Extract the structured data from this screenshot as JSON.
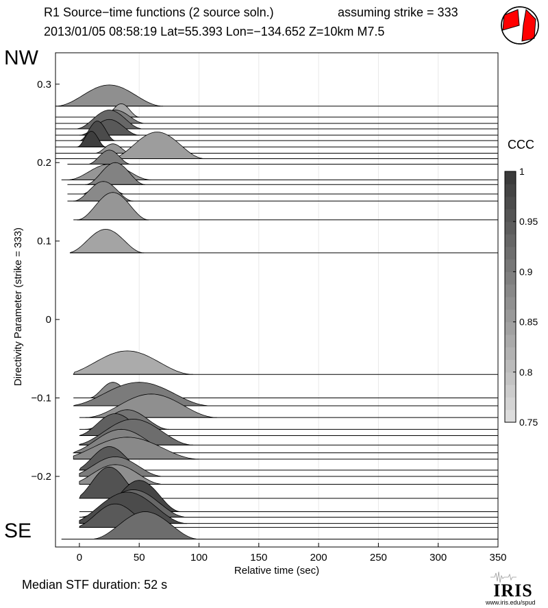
{
  "header": {
    "title_left": "R1 Source−time functions (2 source soln.)",
    "title_right": "assuming strike = 333",
    "event_line": "2013/01/05 08:58:19  Lat=55.393 Lon=−134.652  Z=10km  M7.5"
  },
  "labels": {
    "nw": "NW",
    "se": "SE",
    "median": "Median STF duration: 52 s",
    "url": "www.iris.edu/spud",
    "logo_text": "IRIS"
  },
  "colors": {
    "beachball_fill": "#ff0000",
    "outline": "#000000",
    "grid": "#e8e8e8"
  },
  "chart_data": {
    "type": "area",
    "xlabel": "Relative time (sec)",
    "ylabel": "Directivity Parameter (strike = 333)",
    "xlim": [
      -20,
      350
    ],
    "ylim": [
      -0.29,
      0.34
    ],
    "xticks": [
      0,
      50,
      100,
      150,
      200,
      250,
      300,
      350
    ],
    "yticks": [
      -0.2,
      -0.1,
      0,
      0.1,
      0.2,
      0.3
    ],
    "ytick_labels": [
      "−0.2",
      "−0.1",
      "0",
      "0.1",
      "0.2",
      "0.3"
    ],
    "grid_x": true,
    "colorbar": {
      "title": "CCC",
      "range": [
        0.75,
        1
      ],
      "ticks": [
        0.75,
        0.8,
        0.85,
        0.9,
        0.95,
        1
      ],
      "tick_labels": [
        "0.75",
        "0.8",
        "0.85",
        "0.9",
        "0.95",
        "1"
      ]
    },
    "traces": [
      {
        "y": 0.272,
        "start": -20,
        "end": 350,
        "peak": 25,
        "halfwidth": 45,
        "amp": 0.027,
        "ccc": 0.87
      },
      {
        "y": 0.258,
        "start": -20,
        "end": 350,
        "peak": 35,
        "halfwidth": 15,
        "amp": 0.017,
        "ccc": 0.84
      },
      {
        "y": 0.25,
        "start": -20,
        "end": 350,
        "peak": 30,
        "halfwidth": 25,
        "amp": 0.017,
        "ccc": 0.9
      },
      {
        "y": 0.243,
        "start": -20,
        "end": 350,
        "peak": 25,
        "halfwidth": 28,
        "amp": 0.024,
        "ccc": 0.93
      },
      {
        "y": 0.235,
        "start": -20,
        "end": 350,
        "peak": 25,
        "halfwidth": 25,
        "amp": 0.02,
        "ccc": 0.95
      },
      {
        "y": 0.228,
        "start": -20,
        "end": 350,
        "peak": 15,
        "halfwidth": 15,
        "amp": 0.025,
        "ccc": 0.97
      },
      {
        "y": 0.22,
        "start": -20,
        "end": 350,
        "peak": 10,
        "halfwidth": 12,
        "amp": 0.02,
        "ccc": 0.99
      },
      {
        "y": 0.212,
        "start": -20,
        "end": 350,
        "peak": 28,
        "halfwidth": 15,
        "amp": 0.012,
        "ccc": 0.86
      },
      {
        "y": 0.205,
        "start": -20,
        "end": 350,
        "peak": 65,
        "halfwidth": 40,
        "amp": 0.034,
        "ccc": 0.85
      },
      {
        "y": 0.198,
        "start": -10,
        "end": 350,
        "peak": 25,
        "halfwidth": 18,
        "amp": 0.018,
        "ccc": 0.9
      },
      {
        "y": 0.178,
        "start": -15,
        "end": 350,
        "peak": 25,
        "halfwidth": 35,
        "amp": 0.02,
        "ccc": 0.86
      },
      {
        "y": 0.172,
        "start": -10,
        "end": 350,
        "peak": 30,
        "halfwidth": 25,
        "amp": 0.028,
        "ccc": 0.89
      },
      {
        "y": 0.16,
        "start": -10,
        "end": 350,
        "peak": 20,
        "halfwidth": 18,
        "amp": 0.015,
        "ccc": 0.91
      },
      {
        "y": 0.151,
        "start": -10,
        "end": 350,
        "peak": 20,
        "halfwidth": 25,
        "amp": 0.025,
        "ccc": 0.88
      },
      {
        "y": 0.127,
        "start": -5,
        "end": 350,
        "peak": 28,
        "halfwidth": 30,
        "amp": 0.035,
        "ccc": 0.86
      },
      {
        "y": 0.085,
        "start": -8,
        "end": 350,
        "peak": 22,
        "halfwidth": 32,
        "amp": 0.03,
        "ccc": 0.84
      },
      {
        "y": -0.07,
        "start": -5,
        "end": 350,
        "peak": 40,
        "halfwidth": 55,
        "amp": 0.03,
        "ccc": 0.83
      },
      {
        "y": -0.1,
        "start": -5,
        "end": 350,
        "peak": 28,
        "halfwidth": 20,
        "amp": 0.02,
        "ccc": 0.88
      },
      {
        "y": -0.11,
        "start": -5,
        "end": 350,
        "peak": 50,
        "halfwidth": 60,
        "amp": 0.03,
        "ccc": 0.9
      },
      {
        "y": -0.125,
        "start": 0,
        "end": 350,
        "peak": 60,
        "halfwidth": 55,
        "amp": 0.03,
        "ccc": 0.87
      },
      {
        "y": -0.14,
        "start": 0,
        "end": 350,
        "peak": 40,
        "halfwidth": 35,
        "amp": 0.025,
        "ccc": 0.91
      },
      {
        "y": -0.148,
        "start": 0,
        "end": 350,
        "peak": 30,
        "halfwidth": 32,
        "amp": 0.028,
        "ccc": 0.94
      },
      {
        "y": -0.16,
        "start": 0,
        "end": 350,
        "peak": 45,
        "halfwidth": 50,
        "amp": 0.033,
        "ccc": 0.92
      },
      {
        "y": -0.17,
        "start": -5,
        "end": 350,
        "peak": 35,
        "halfwidth": 45,
        "amp": 0.03,
        "ccc": 0.89
      },
      {
        "y": -0.178,
        "start": -5,
        "end": 350,
        "peak": 40,
        "halfwidth": 60,
        "amp": 0.028,
        "ccc": 0.88
      },
      {
        "y": -0.192,
        "start": 0,
        "end": 350,
        "peak": 25,
        "halfwidth": 30,
        "amp": 0.03,
        "ccc": 0.95
      },
      {
        "y": -0.2,
        "start": 0,
        "end": 350,
        "peak": 30,
        "halfwidth": 40,
        "amp": 0.025,
        "ccc": 0.9
      },
      {
        "y": -0.21,
        "start": 0,
        "end": 350,
        "peak": 30,
        "halfwidth": 40,
        "amp": 0.025,
        "ccc": 0.87
      },
      {
        "y": -0.228,
        "start": 0,
        "end": 350,
        "peak": 25,
        "halfwidth": 30,
        "amp": 0.04,
        "ccc": 0.96
      },
      {
        "y": -0.245,
        "start": 0,
        "end": 350,
        "peak": 50,
        "halfwidth": 35,
        "amp": 0.04,
        "ccc": 0.98
      },
      {
        "y": -0.252,
        "start": 0,
        "end": 350,
        "peak": 45,
        "halfwidth": 45,
        "amp": 0.035,
        "ccc": 0.93
      },
      {
        "y": -0.26,
        "start": 0,
        "end": 350,
        "peak": 40,
        "halfwidth": 50,
        "amp": 0.04,
        "ccc": 0.97
      },
      {
        "y": -0.265,
        "start": 0,
        "end": 350,
        "peak": 30,
        "halfwidth": 35,
        "amp": 0.03,
        "ccc": 0.95
      },
      {
        "y": -0.28,
        "start": -15,
        "end": 350,
        "peak": 55,
        "halfwidth": 45,
        "amp": 0.035,
        "ccc": 0.92
      }
    ]
  }
}
